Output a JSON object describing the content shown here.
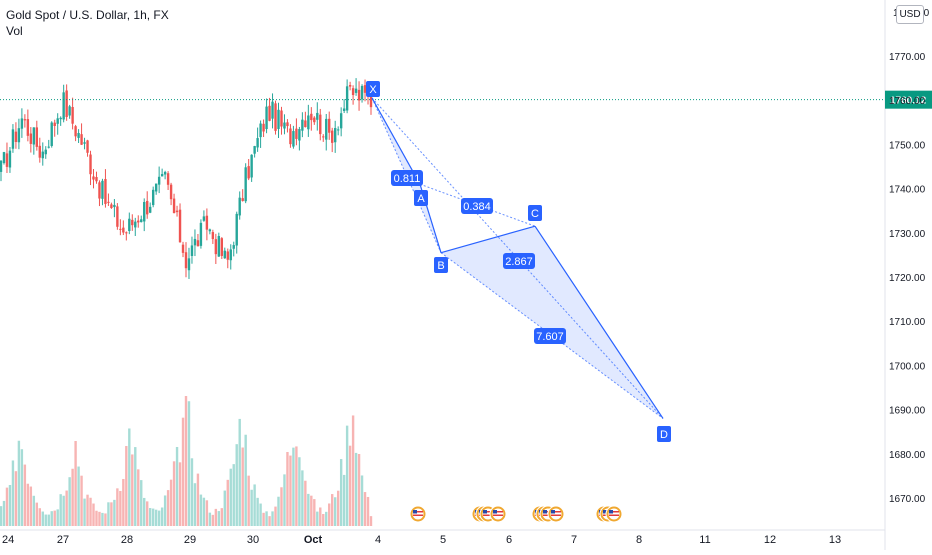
{
  "header": {
    "title": "Gold Spot / U.S. Dollar, 1h, FX",
    "volume_label": "Vol"
  },
  "currency": "USD",
  "last_price": {
    "label": "1760.12",
    "value": 1760.12,
    "color": "#089981"
  },
  "colors": {
    "up": "#26a69a",
    "down": "#ef5350",
    "pattern": "#2962ff",
    "vol_up": "#a6dcd6",
    "vol_down": "#f7b4b3"
  },
  "chart_data": {
    "type": "candlestick",
    "symbol": "Gold Spot / U.S. Dollar",
    "interval": "1h",
    "ylim": [
      1663,
      1780
    ],
    "yticks": [
      1670,
      1680,
      1690,
      1700,
      1710,
      1720,
      1730,
      1740,
      1750,
      1760,
      1770,
      1780
    ],
    "y_tick_labels": [
      "1670.00",
      "1680.00",
      "1690.00",
      "1700.00",
      "1710.00",
      "1720.00",
      "1730.00",
      "1740.00",
      "1750.00",
      "1760.00",
      "1770.00",
      "1780.00"
    ],
    "x_tick_labels": [
      "24",
      "27",
      "28",
      "29",
      "30",
      "Oct",
      "4",
      "5",
      "6",
      "7",
      "8",
      "11",
      "12",
      "13"
    ],
    "anchors": [
      {
        "day": "Sep 24",
        "price": 1744
      },
      {
        "day": "Sep 24",
        "price": 1756
      },
      {
        "day": "Sep 27",
        "price": 1748
      },
      {
        "day": "Sep 27",
        "price": 1760
      },
      {
        "day": "Sep 28",
        "price": 1750
      },
      {
        "day": "Sep 28",
        "price": 1738
      },
      {
        "day": "Sep 28",
        "price": 1730
      },
      {
        "day": "Sep 29",
        "price": 1736
      },
      {
        "day": "Sep 29",
        "price": 1742
      },
      {
        "day": "Sep 29",
        "price": 1724
      },
      {
        "day": "Sep 30",
        "price": 1732
      },
      {
        "day": "Sep 30",
        "price": 1723
      },
      {
        "day": "Sep 30",
        "price": 1744
      },
      {
        "day": "Sep 30",
        "price": 1758
      },
      {
        "day": "Oct 1",
        "price": 1752
      },
      {
        "day": "Oct 1",
        "price": 1758
      },
      {
        "day": "Oct 1",
        "price": 1752
      },
      {
        "day": "Oct 1",
        "price": 1762
      },
      {
        "day": "Oct 1",
        "price": 1760.12
      }
    ],
    "volume_shape": [
      0.15,
      0.3,
      0.75,
      0.4,
      0.2,
      0.1,
      0.15,
      0.35,
      0.7,
      0.3,
      0.15,
      0.1,
      0.2,
      0.4,
      0.8,
      0.35,
      0.15,
      0.1,
      0.25,
      0.5,
      1.0,
      0.45,
      0.2,
      0.1,
      0.2,
      0.45,
      0.9,
      0.4,
      0.15,
      0.1,
      0.2,
      0.55,
      0.85,
      0.35,
      0.15,
      0.1,
      0.25,
      0.5,
      1.0,
      0.4,
      0.1
    ],
    "harmonic_pattern": {
      "points": [
        {
          "label": "X",
          "day": "Oct 1",
          "price": 1760.5
        },
        {
          "label": "A",
          "day": "Oct 4",
          "price": 1741
        },
        {
          "label": "B",
          "day": "Oct 4",
          "price": 1725.5
        },
        {
          "label": "C",
          "day": "Oct 6",
          "price": 1731.5
        },
        {
          "label": "D",
          "day": "Oct 8",
          "price": 1688
        }
      ],
      "ratios": [
        {
          "label": "0.811",
          "value": 0.811
        },
        {
          "label": "0.384",
          "value": 0.384
        },
        {
          "label": "2.867",
          "value": 2.867
        },
        {
          "label": "7.607",
          "value": 7.607
        }
      ]
    },
    "events": {
      "count": 12
    }
  }
}
